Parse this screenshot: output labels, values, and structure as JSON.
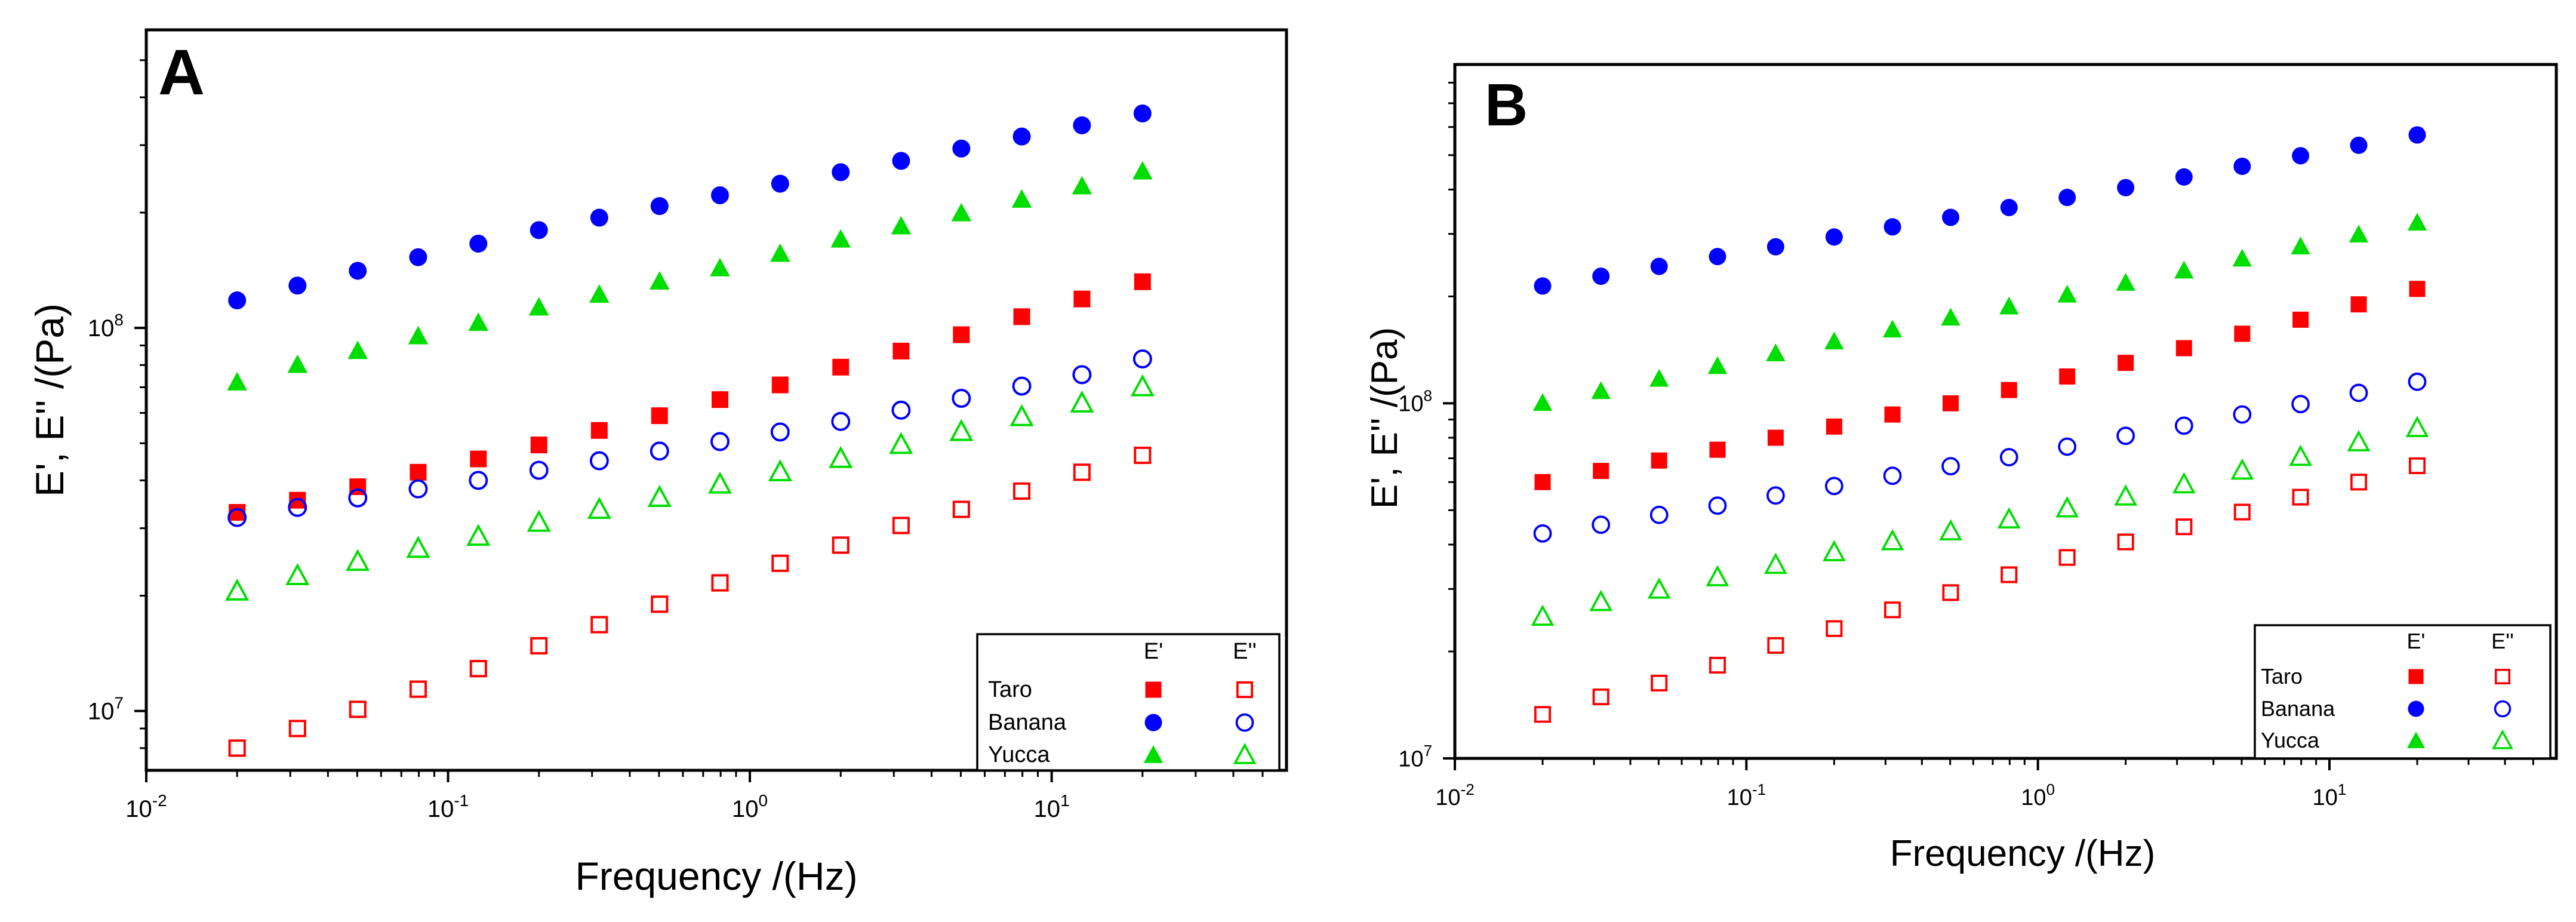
{
  "colors": {
    "taro": "#ff0000",
    "banana": "#0000ff",
    "yucca": "#00dd00",
    "axis": "#000000"
  },
  "chart_data": [
    {
      "panel_label": "A",
      "type": "scatter",
      "xscale": "log",
      "yscale": "log",
      "xlabel": "Frequency /(Hz)",
      "ylabel": "E', E'' /(Pa)",
      "xlim": [
        0.01,
        60
      ],
      "ylim": [
        7000000,
        600000000
      ],
      "xticks": [
        {
          "value": 0.01,
          "base": "10",
          "exp": "-2"
        },
        {
          "value": 0.1,
          "base": "10",
          "exp": "-1"
        },
        {
          "value": 1,
          "base": "10",
          "exp": "0"
        },
        {
          "value": 10,
          "base": "10",
          "exp": "1"
        }
      ],
      "yticks": [
        {
          "value": 10000000,
          "base": "10",
          "exp": "7"
        },
        {
          "value": 100000000,
          "base": "10",
          "exp": "8"
        }
      ],
      "legend": {
        "position": "bottom-right",
        "headers": [
          "E'",
          "E''"
        ],
        "entries": [
          {
            "name": "Taro",
            "color_key": "taro",
            "marker": "square"
          },
          {
            "name": "Banana",
            "color_key": "banana",
            "marker": "circle"
          },
          {
            "name": "Yucca",
            "color_key": "yucca",
            "marker": "triangle"
          }
        ]
      },
      "x": [
        0.02,
        0.0317,
        0.0502,
        0.0796,
        0.126,
        0.2,
        0.317,
        0.502,
        0.796,
        1.26,
        2.0,
        3.17,
        5.02,
        7.96,
        12.6,
        20.0
      ],
      "series": [
        {
          "name": "Taro E'",
          "color_key": "taro",
          "marker": "square",
          "filled": true,
          "values": [
            33000000,
            35500000,
            38500000,
            42000000,
            45500000,
            49500000,
            54000000,
            59000000,
            65000000,
            71000000,
            79000000,
            87000000,
            96000000,
            107000000,
            119000000,
            132000000
          ]
        },
        {
          "name": "Taro E''",
          "color_key": "taro",
          "marker": "square",
          "filled": false,
          "values": [
            8000000,
            9000000,
            10100000,
            11400000,
            12900000,
            14800000,
            16800000,
            19000000,
            21600000,
            24300000,
            27100000,
            30500000,
            33600000,
            37500000,
            42000000,
            46500000
          ]
        },
        {
          "name": "Banana E'",
          "color_key": "banana",
          "marker": "circle",
          "filled": true,
          "values": [
            118000000,
            129000000,
            141000000,
            153000000,
            166000000,
            180000000,
            194000000,
            208000000,
            222000000,
            238000000,
            255000000,
            273000000,
            294000000,
            316000000,
            338000000,
            363000000
          ]
        },
        {
          "name": "Banana E''",
          "color_key": "banana",
          "marker": "circle",
          "filled": false,
          "values": [
            32000000,
            34000000,
            36000000,
            38000000,
            40000000,
            42500000,
            45000000,
            47700000,
            50500000,
            53500000,
            57000000,
            61000000,
            65500000,
            70500000,
            75500000,
            83000000
          ]
        },
        {
          "name": "Yucca E'",
          "color_key": "yucca",
          "marker": "triangle",
          "filled": true,
          "values": [
            72000000,
            80000000,
            87000000,
            95000000,
            103000000,
            113000000,
            122000000,
            132000000,
            143000000,
            156000000,
            170000000,
            184000000,
            199000000,
            216000000,
            234000000,
            256000000
          ]
        },
        {
          "name": "Yucca E''",
          "color_key": "yucca",
          "marker": "triangle",
          "filled": false,
          "values": [
            20500000,
            22500000,
            24500000,
            26500000,
            28500000,
            31000000,
            33500000,
            36000000,
            39000000,
            42000000,
            45500000,
            49500000,
            53500000,
            58500000,
            63500000,
            70000000
          ]
        }
      ]
    },
    {
      "panel_label": "B",
      "type": "scatter",
      "xscale": "log",
      "yscale": "log",
      "xlabel": "Frequency /(Hz)",
      "ylabel": "E', E'' /(Pa)",
      "xlim": [
        0.01,
        60
      ],
      "ylim": [
        10000000,
        900000000
      ],
      "xticks": [
        {
          "value": 0.01,
          "base": "10",
          "exp": "-2"
        },
        {
          "value": 0.1,
          "base": "10",
          "exp": "-1"
        },
        {
          "value": 1,
          "base": "10",
          "exp": "0"
        },
        {
          "value": 10,
          "base": "10",
          "exp": "1"
        }
      ],
      "yticks": [
        {
          "value": 10000000,
          "base": "10",
          "exp": "7"
        },
        {
          "value": 100000000,
          "base": "10",
          "exp": "8"
        }
      ],
      "legend": {
        "position": "bottom-right",
        "headers": [
          "E'",
          "E''"
        ],
        "entries": [
          {
            "name": "Taro",
            "color_key": "taro",
            "marker": "square"
          },
          {
            "name": "Banana",
            "color_key": "banana",
            "marker": "circle"
          },
          {
            "name": "Yucca",
            "color_key": "yucca",
            "marker": "triangle"
          }
        ]
      },
      "x": [
        0.02,
        0.0317,
        0.0502,
        0.0796,
        0.126,
        0.2,
        0.317,
        0.502,
        0.796,
        1.26,
        2.0,
        3.17,
        5.02,
        7.96,
        12.6,
        20.0
      ],
      "series": [
        {
          "name": "Taro E'",
          "color_key": "taro",
          "marker": "square",
          "filled": true,
          "values": [
            60000000,
            64500000,
            69000000,
            74000000,
            80000000,
            86000000,
            93000000,
            100000000,
            109000000,
            119000000,
            130000000,
            143000000,
            157000000,
            172000000,
            190000000,
            210000000
          ]
        },
        {
          "name": "Taro E''",
          "color_key": "taro",
          "marker": "square",
          "filled": false,
          "values": [
            13300000,
            14900000,
            16300000,
            18300000,
            20800000,
            23200000,
            26200000,
            29300000,
            32900000,
            36800000,
            40700000,
            44900000,
            49400000,
            54400000,
            60000000,
            66700000
          ]
        },
        {
          "name": "Banana E'",
          "color_key": "banana",
          "marker": "circle",
          "filled": true,
          "values": [
            214000000,
            228000000,
            243000000,
            259000000,
            276000000,
            294000000,
            314000000,
            334000000,
            356000000,
            380000000,
            405000000,
            434000000,
            465000000,
            498000000,
            533000000,
            570000000
          ]
        },
        {
          "name": "Banana E''",
          "color_key": "banana",
          "marker": "circle",
          "filled": false,
          "values": [
            43000000,
            45500000,
            48500000,
            51500000,
            55000000,
            58500000,
            62500000,
            66500000,
            70500000,
            75500000,
            81000000,
            86500000,
            93000000,
            99500000,
            107000000,
            115000000
          ]
        },
        {
          "name": "Yucca E'",
          "color_key": "yucca",
          "marker": "triangle",
          "filled": true,
          "values": [
            100000000,
            108000000,
            117000000,
            127000000,
            138000000,
            149000000,
            161000000,
            174000000,
            187000000,
            202000000,
            218000000,
            236000000,
            255000000,
            276000000,
            298000000,
            322000000
          ]
        },
        {
          "name": "Yucca E''",
          "color_key": "yucca",
          "marker": "triangle",
          "filled": false,
          "values": [
            25000000,
            27500000,
            29800000,
            32300000,
            35000000,
            38000000,
            40800000,
            43500000,
            47000000,
            50500000,
            54500000,
            59000000,
            64500000,
            70500000,
            77500000,
            85000000
          ]
        }
      ]
    }
  ]
}
